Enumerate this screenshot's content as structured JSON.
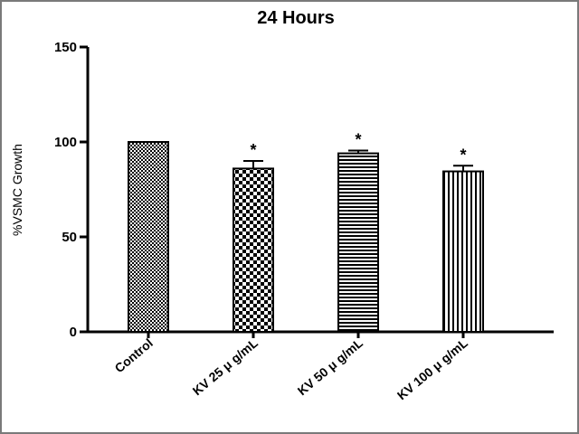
{
  "chart_data": {
    "type": "bar",
    "title": "24 Hours",
    "xlabel": "",
    "ylabel": "%VSMC Growth",
    "ylim": [
      0,
      150
    ],
    "yticks": [
      0,
      50,
      100,
      150
    ],
    "grid": false,
    "categories": [
      "Control",
      "KV 25 μ g/mL",
      "KV 50 μ g/mL",
      "KV 100 μ g/mL"
    ],
    "values": [
      100,
      86,
      94,
      84.5
    ],
    "errors": [
      0,
      4,
      1.5,
      3
    ],
    "significance": [
      "",
      "*",
      "*",
      "*"
    ],
    "patterns": [
      "dots",
      "checker",
      "horizontal",
      "vertical"
    ]
  }
}
